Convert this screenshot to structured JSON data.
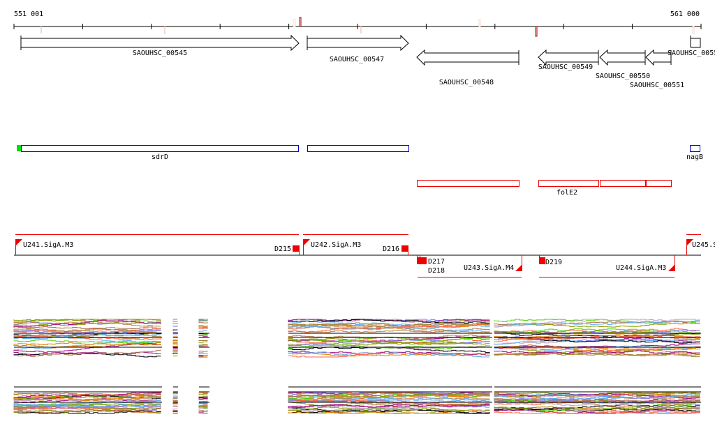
{
  "ruler": {
    "start_label": "551 001",
    "end_label": "561 000",
    "start": 551001,
    "end": 561000
  },
  "genes": [
    {
      "label": "SAOUHSC_00545",
      "start": 551101,
      "end": 555150,
      "strand": "+"
    },
    {
      "label": "SAOUHSC_00547",
      "start": 555270,
      "end": 556750,
      "strand": "+"
    },
    {
      "label": "SAOUHSC_00548",
      "start": 556870,
      "end": 558350,
      "strand": "-"
    },
    {
      "label": "SAOUHSC_00549",
      "start": 558640,
      "end": 559510,
      "strand": "-"
    },
    {
      "label": "SAOUHSC_00550",
      "start": 559530,
      "end": 560190,
      "strand": "-"
    },
    {
      "label": "SAOUHSC_00551",
      "start": 560200,
      "end": 560570,
      "strand": "-"
    },
    {
      "label": "SAOUHSC_0055",
      "start": 560730,
      "end": 561000,
      "strand": "+"
    }
  ],
  "forward_features": [
    {
      "label": "sdrD"
    },
    {
      "label": ""
    },
    {
      "label": "nagB"
    }
  ],
  "reverse_features": [
    {
      "label": "folE2"
    }
  ],
  "operons": {
    "forward": [
      {
        "label": "U241.SigA.M3",
        "end_label": "D215"
      },
      {
        "label": "U242.SigA.M3",
        "end_label": "D216"
      },
      {
        "label": "U245.S"
      }
    ],
    "reverse": [
      {
        "label": "U243.SigA.M4",
        "end_label": "D217",
        "end_label2": "D218"
      },
      {
        "label": "U244.SigA.M3",
        "end_label": "D219"
      }
    ]
  },
  "colors": {
    "forward_box": "#0000cc",
    "reverse_box": "#ee0000",
    "operon": "#ee0000",
    "start_mark": "#00dd00"
  }
}
